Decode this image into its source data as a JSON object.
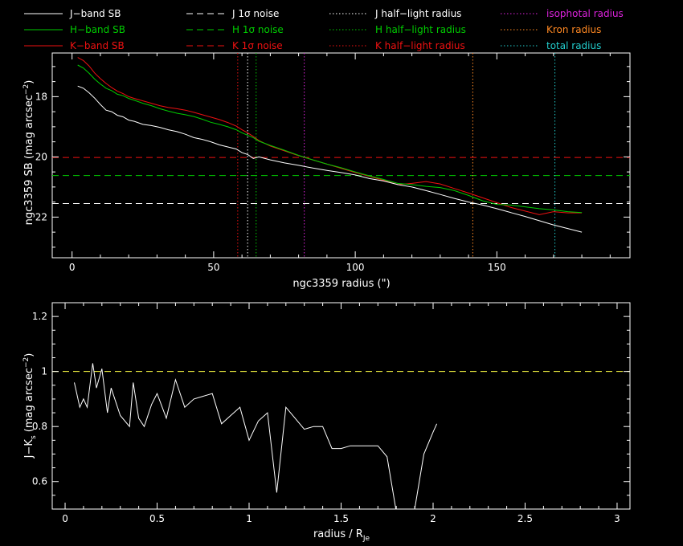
{
  "chart_data": [
    {
      "type": "line",
      "xlabel": "ngc3359 radius (\")",
      "ylabel": "ngc3359 SB (mag arcsec",
      "ylabel_sup": "−2",
      "ylabel_end": ")",
      "xlim": [
        -7,
        197
      ],
      "ylim": [
        23.35,
        16.55
      ],
      "y_inverted": true,
      "xticks": [
        0,
        50,
        100,
        150
      ],
      "yticks": [
        18,
        20,
        22
      ],
      "legend": [
        {
          "label": "J−band SB",
          "color": "#ffffff",
          "dash": "solid"
        },
        {
          "label": "H−band SB",
          "color": "#00cc00",
          "dash": "solid"
        },
        {
          "label": "K−band SB",
          "color": "#ee1111",
          "dash": "solid"
        },
        {
          "label": "J 1σ noise",
          "color": "#ffffff",
          "dash": "dashed"
        },
        {
          "label": "H 1σ noise",
          "color": "#00cc00",
          "dash": "dashed"
        },
        {
          "label": "K 1σ noise",
          "color": "#ee1111",
          "dash": "dashed"
        },
        {
          "label": "J half−light radius",
          "color": "#ffffff",
          "dash": "dotted"
        },
        {
          "label": "H half−light radius",
          "color": "#00cc00",
          "dash": "dotted"
        },
        {
          "label": "K half−light radius",
          "color": "#ee1111",
          "dash": "dotted"
        },
        {
          "label": "isophotal radius",
          "color": "#dd22dd",
          "dash": "dotted"
        },
        {
          "label": "Kron radius",
          "color": "#ff8822",
          "dash": "dotted"
        },
        {
          "label": "total radius",
          "color": "#22cccc",
          "dash": "dotted"
        }
      ],
      "series": [
        {
          "name": "J−band SB",
          "color": "#ffffff",
          "x": [
            2,
            4,
            6,
            8,
            10,
            12,
            14,
            16,
            18,
            20,
            22,
            25,
            28,
            31,
            34,
            37,
            40,
            43,
            46,
            49,
            52,
            55,
            58,
            60,
            62,
            64,
            66,
            70,
            75,
            80,
            85,
            90,
            95,
            100,
            105,
            110,
            115,
            120,
            125,
            130,
            135,
            140,
            145,
            150,
            155,
            160,
            165,
            170,
            175,
            180
          ],
          "y": [
            17.65,
            17.72,
            17.87,
            18.05,
            18.26,
            18.45,
            18.5,
            18.62,
            18.67,
            18.78,
            18.82,
            18.92,
            18.96,
            19.02,
            19.1,
            19.16,
            19.25,
            19.36,
            19.42,
            19.5,
            19.6,
            19.67,
            19.74,
            19.86,
            19.92,
            20.05,
            20.0,
            20.1,
            20.2,
            20.28,
            20.37,
            20.45,
            20.52,
            20.6,
            20.72,
            20.8,
            20.92,
            21.0,
            21.12,
            21.25,
            21.38,
            21.5,
            21.6,
            21.72,
            21.85,
            21.98,
            22.12,
            22.26,
            22.38,
            22.5
          ]
        },
        {
          "name": "H−band SB",
          "color": "#00cc00",
          "x": [
            2,
            4,
            6,
            8,
            10,
            12,
            14,
            16,
            18,
            20,
            22,
            25,
            28,
            31,
            34,
            37,
            40,
            43,
            46,
            49,
            52,
            55,
            58,
            60,
            62,
            64,
            66,
            70,
            75,
            80,
            85,
            90,
            95,
            100,
            105,
            110,
            115,
            120,
            125,
            130,
            135,
            140,
            145,
            150,
            155,
            160,
            165,
            170,
            175,
            180
          ],
          "y": [
            16.95,
            17.05,
            17.22,
            17.42,
            17.58,
            17.72,
            17.8,
            17.92,
            17.97,
            18.06,
            18.12,
            18.22,
            18.3,
            18.4,
            18.48,
            18.55,
            18.6,
            18.66,
            18.75,
            18.85,
            18.92,
            19.0,
            19.1,
            19.2,
            19.28,
            19.36,
            19.48,
            19.62,
            19.78,
            19.95,
            20.1,
            20.24,
            20.36,
            20.5,
            20.63,
            20.75,
            20.88,
            20.92,
            20.98,
            21.02,
            21.12,
            21.28,
            21.46,
            21.58,
            21.6,
            21.66,
            21.72,
            21.76,
            21.82,
            21.85
          ]
        },
        {
          "name": "K−band SB",
          "color": "#ee1111",
          "x": [
            2,
            4,
            6,
            8,
            10,
            12,
            14,
            16,
            18,
            20,
            22,
            25,
            28,
            31,
            34,
            37,
            40,
            43,
            46,
            49,
            52,
            55,
            58,
            60,
            62,
            64,
            66,
            70,
            75,
            80,
            85,
            90,
            95,
            100,
            105,
            110,
            115,
            120,
            125,
            130,
            135,
            140,
            145,
            150,
            155,
            160,
            165,
            170,
            175,
            180
          ],
          "y": [
            16.7,
            16.8,
            16.98,
            17.22,
            17.4,
            17.56,
            17.7,
            17.82,
            17.9,
            18.0,
            18.06,
            18.14,
            18.22,
            18.3,
            18.36,
            18.4,
            18.45,
            18.52,
            18.6,
            18.68,
            18.76,
            18.86,
            18.98,
            19.1,
            19.2,
            19.32,
            19.46,
            19.64,
            19.8,
            19.96,
            20.1,
            20.24,
            20.38,
            20.52,
            20.65,
            20.78,
            20.92,
            20.88,
            20.82,
            20.9,
            21.05,
            21.2,
            21.36,
            21.52,
            21.68,
            21.8,
            21.92,
            21.82,
            21.86,
            21.86
          ]
        }
      ],
      "noise": {
        "J": 21.55,
        "H": 20.62,
        "K": 20.02
      },
      "radii": {
        "K_half_light": 58.5,
        "J_half_light": 62.0,
        "H_half_light": 65.0,
        "isophotal": 82.0,
        "kron": 141.5,
        "total": 170.5
      }
    },
    {
      "type": "line",
      "xlabel": "radius / R",
      "xlabel_sub": "Je",
      "ylabel": "J−K",
      "ylabel_sub": "s",
      "ylabel_mid": " (mag arcsec",
      "ylabel_sup": "−2",
      "ylabel_end": ")",
      "xlim": [
        -0.07,
        3.07
      ],
      "ylim": [
        0.5,
        1.25
      ],
      "xticks": [
        0,
        0.5,
        1,
        1.5,
        2,
        2.5,
        3
      ],
      "xtick_labels": [
        "0",
        "0.5",
        "1",
        "1.5",
        "2",
        "2.5",
        "3"
      ],
      "yticks": [
        0.6,
        0.8,
        1,
        1.2
      ],
      "ytick_labels": [
        "0.6",
        "0.8",
        "1",
        "1.2"
      ],
      "reference_line": {
        "y": 1.0,
        "color": "#ffff44"
      },
      "series": [
        {
          "color": "#ffffff",
          "x": [
            0.05,
            0.08,
            0.1,
            0.12,
            0.15,
            0.17,
            0.2,
            0.23,
            0.25,
            0.3,
            0.35,
            0.37,
            0.4,
            0.43,
            0.47,
            0.5,
            0.55,
            0.6,
            0.65,
            0.7,
            0.75,
            0.8,
            0.85,
            0.9,
            0.95,
            1.0,
            1.05,
            1.1,
            1.15,
            1.2,
            1.25,
            1.3,
            1.35,
            1.4,
            1.45,
            1.5,
            1.55,
            1.6,
            1.65,
            1.7,
            1.75,
            1.8,
            1.85,
            1.9,
            1.95,
            2.0,
            2.02
          ],
          "y": [
            0.96,
            0.87,
            0.9,
            0.87,
            1.03,
            0.94,
            1.01,
            0.85,
            0.94,
            0.84,
            0.8,
            0.96,
            0.83,
            0.8,
            0.88,
            0.92,
            0.83,
            0.97,
            0.87,
            0.9,
            0.91,
            0.92,
            0.81,
            0.84,
            0.87,
            0.75,
            0.82,
            0.85,
            0.56,
            0.87,
            0.83,
            0.79,
            0.8,
            0.8,
            0.72,
            0.72,
            0.73,
            0.73,
            0.73,
            0.73,
            0.69,
            0.49,
            0.42,
            0.5,
            0.7,
            0.78,
            0.81
          ]
        }
      ]
    }
  ]
}
